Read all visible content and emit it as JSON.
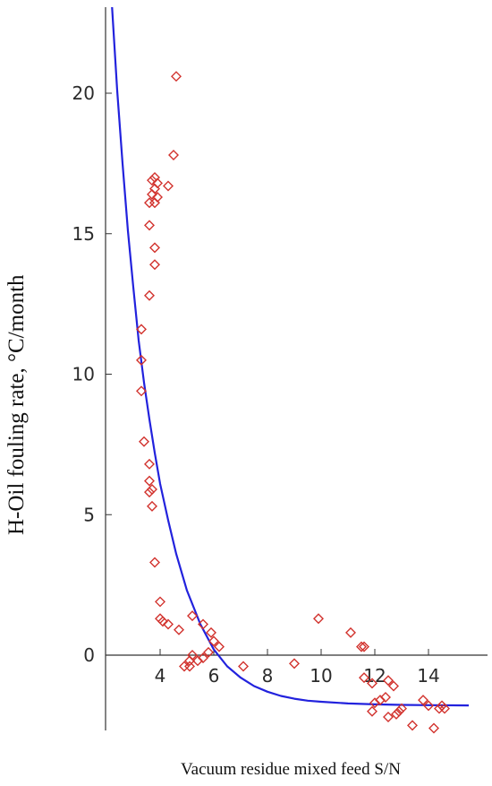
{
  "chart_data": {
    "type": "scatter",
    "title": "",
    "xlabel": "Vacuum residue mixed feed S/N",
    "ylabel": "H-Oil fouling rate, °C/month",
    "xlim": [
      1.9,
      15.6
    ],
    "ylim": [
      -2.8,
      23.2
    ],
    "x_ticks": [
      4,
      6,
      8,
      10,
      12,
      14
    ],
    "y_ticks": [
      0,
      5,
      10,
      15,
      20
    ],
    "grid": false,
    "legend": "none",
    "colors": {
      "points": "#d2322d",
      "curve": "#2222dd",
      "axis": "#333333"
    },
    "series": [
      {
        "type": "scatter",
        "marker": "diamond-open",
        "points": [
          [
            4.6,
            20.6
          ],
          [
            4.5,
            17.8
          ],
          [
            4.3,
            16.7
          ],
          [
            3.8,
            17.0
          ],
          [
            3.7,
            16.9
          ],
          [
            3.9,
            16.8
          ],
          [
            3.8,
            16.6
          ],
          [
            3.7,
            16.4
          ],
          [
            3.9,
            16.3
          ],
          [
            3.6,
            16.1
          ],
          [
            3.8,
            16.1
          ],
          [
            3.6,
            15.3
          ],
          [
            3.8,
            14.5
          ],
          [
            3.8,
            13.9
          ],
          [
            3.6,
            12.8
          ],
          [
            3.3,
            11.6
          ],
          [
            3.3,
            10.5
          ],
          [
            3.3,
            9.4
          ],
          [
            3.4,
            7.6
          ],
          [
            3.6,
            6.8
          ],
          [
            3.6,
            6.2
          ],
          [
            3.7,
            5.9
          ],
          [
            3.6,
            5.8
          ],
          [
            3.7,
            5.3
          ],
          [
            3.8,
            3.3
          ],
          [
            4.0,
            1.9
          ],
          [
            4.0,
            1.3
          ],
          [
            4.1,
            1.2
          ],
          [
            4.3,
            1.1
          ],
          [
            4.7,
            0.9
          ],
          [
            5.2,
            1.4
          ],
          [
            5.6,
            1.1
          ],
          [
            5.9,
            0.8
          ],
          [
            6.0,
            0.5
          ],
          [
            6.2,
            0.3
          ],
          [
            5.8,
            0.1
          ],
          [
            5.6,
            -0.1
          ],
          [
            5.4,
            -0.2
          ],
          [
            5.2,
            0.0
          ],
          [
            5.1,
            -0.2
          ],
          [
            4.9,
            -0.4
          ],
          [
            5.1,
            -0.4
          ],
          [
            7.1,
            -0.4
          ],
          [
            9.0,
            -0.3
          ],
          [
            9.9,
            1.3
          ],
          [
            11.1,
            0.8
          ],
          [
            11.5,
            0.3
          ],
          [
            11.6,
            0.3
          ],
          [
            11.6,
            -0.8
          ],
          [
            11.9,
            -1.0
          ],
          [
            12.0,
            -1.7
          ],
          [
            11.9,
            -2.0
          ],
          [
            12.2,
            -1.6
          ],
          [
            12.4,
            -1.5
          ],
          [
            12.5,
            -0.9
          ],
          [
            12.5,
            -2.2
          ],
          [
            12.7,
            -1.1
          ],
          [
            12.8,
            -2.1
          ],
          [
            12.9,
            -2.0
          ],
          [
            13.0,
            -1.9
          ],
          [
            13.4,
            -2.5
          ],
          [
            13.8,
            -1.6
          ],
          [
            14.0,
            -1.8
          ],
          [
            14.2,
            -2.6
          ],
          [
            14.4,
            -1.9
          ],
          [
            14.5,
            -1.8
          ],
          [
            14.6,
            -1.9
          ]
        ]
      },
      {
        "type": "line",
        "curve": "exponential decay fit",
        "points": [
          [
            2.2,
            23.2
          ],
          [
            2.4,
            20.1
          ],
          [
            2.6,
            17.5
          ],
          [
            2.8,
            15.1
          ],
          [
            3.0,
            13.1
          ],
          [
            3.2,
            11.2
          ],
          [
            3.4,
            9.7
          ],
          [
            3.6,
            8.4
          ],
          [
            3.8,
            7.2
          ],
          [
            4.0,
            6.1
          ],
          [
            4.3,
            4.8
          ],
          [
            4.6,
            3.6
          ],
          [
            5.0,
            2.3
          ],
          [
            5.5,
            1.1
          ],
          [
            6.0,
            0.2
          ],
          [
            6.5,
            -0.4
          ],
          [
            7.0,
            -0.8
          ],
          [
            7.5,
            -1.1
          ],
          [
            8.0,
            -1.3
          ],
          [
            8.5,
            -1.45
          ],
          [
            9.0,
            -1.55
          ],
          [
            9.5,
            -1.62
          ],
          [
            10.0,
            -1.66
          ],
          [
            11.0,
            -1.72
          ],
          [
            12.0,
            -1.75
          ],
          [
            13.0,
            -1.77
          ],
          [
            14.0,
            -1.78
          ],
          [
            15.5,
            -1.79
          ]
        ]
      }
    ]
  }
}
